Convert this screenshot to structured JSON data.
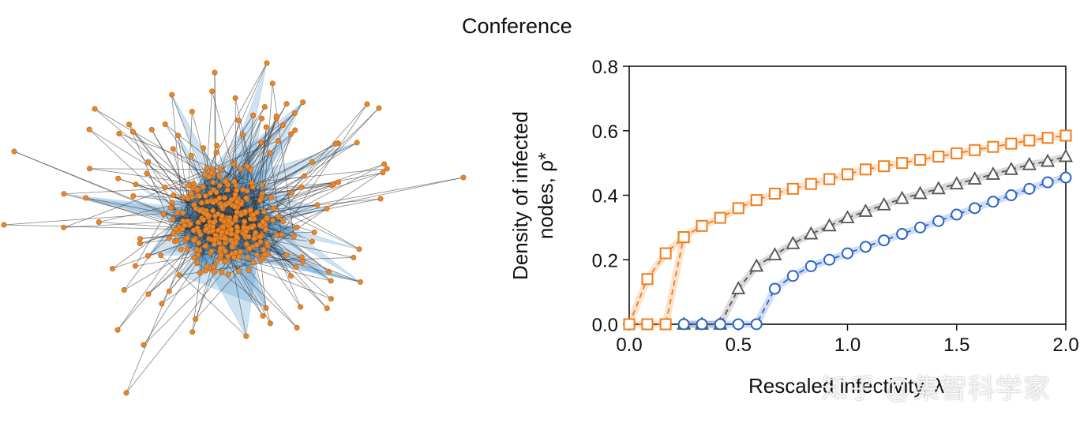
{
  "figure": {
    "title": "Conference",
    "watermark": "知乎 @集智科学家"
  },
  "network": {
    "caption_icon": "network-graph",
    "node_color": "#e8862a",
    "face_color": "#4f97cf",
    "edge_color": "#333333"
  },
  "chart_data": {
    "type": "line",
    "title": "Conference",
    "xlabel": "Rescaled infectivity, λ",
    "ylabel_line1": "Density of infected",
    "ylabel_line2": "nodes, ρ*",
    "xlim": [
      0.0,
      2.0
    ],
    "ylim": [
      0.0,
      0.8
    ],
    "xticks": [
      "0.0",
      "0.5",
      "1.0",
      "1.5",
      "2.0"
    ],
    "yticks": [
      "0.0",
      "0.2",
      "0.4",
      "0.6",
      "0.8"
    ],
    "series": [
      {
        "name": "upper branch (squares)",
        "marker": "square",
        "color": "#f07d1c",
        "x": [
          0.0,
          0.083,
          0.167,
          0.25,
          0.333,
          0.417,
          0.5,
          0.583,
          0.667,
          0.75,
          0.833,
          0.917,
          1.0,
          1.083,
          1.167,
          1.25,
          1.333,
          1.417,
          1.5,
          1.583,
          1.667,
          1.75,
          1.833,
          1.917,
          2.0
        ],
        "y": [
          0.0,
          0.14,
          0.22,
          0.27,
          0.305,
          0.33,
          0.36,
          0.385,
          0.405,
          0.42,
          0.435,
          0.45,
          0.465,
          0.48,
          0.49,
          0.5,
          0.51,
          0.52,
          0.53,
          0.54,
          0.55,
          0.56,
          0.57,
          0.578,
          0.585
        ]
      },
      {
        "name": "lower branch (squares)",
        "marker": "square",
        "color": "#f07d1c",
        "dashed": true,
        "x": [
          0.0,
          0.083,
          0.167,
          0.25
        ],
        "y": [
          0.0,
          0.0,
          0.0,
          0.27
        ]
      },
      {
        "name": "triangles",
        "marker": "triangle",
        "color": "#555555",
        "x": [
          0.25,
          0.333,
          0.417,
          0.5,
          0.583,
          0.667,
          0.75,
          0.833,
          0.917,
          1.0,
          1.083,
          1.167,
          1.25,
          1.333,
          1.417,
          1.5,
          1.583,
          1.667,
          1.75,
          1.833,
          1.917,
          2.0
        ],
        "y": [
          0.0,
          0.0,
          0.0,
          0.11,
          0.18,
          0.215,
          0.25,
          0.28,
          0.305,
          0.33,
          0.35,
          0.37,
          0.39,
          0.405,
          0.42,
          0.435,
          0.45,
          0.465,
          0.48,
          0.495,
          0.505,
          0.52
        ]
      },
      {
        "name": "circles",
        "marker": "circle",
        "color": "#2a64c4",
        "x": [
          0.25,
          0.333,
          0.417,
          0.5,
          0.583,
          0.667,
          0.75,
          0.833,
          0.917,
          1.0,
          1.083,
          1.167,
          1.25,
          1.333,
          1.417,
          1.5,
          1.583,
          1.667,
          1.75,
          1.833,
          1.917,
          2.0
        ],
        "y": [
          0.0,
          0.0,
          0.0,
          0.0,
          0.0,
          0.11,
          0.15,
          0.18,
          0.2,
          0.22,
          0.24,
          0.26,
          0.28,
          0.3,
          0.32,
          0.34,
          0.36,
          0.38,
          0.4,
          0.42,
          0.44,
          0.455
        ]
      }
    ]
  }
}
